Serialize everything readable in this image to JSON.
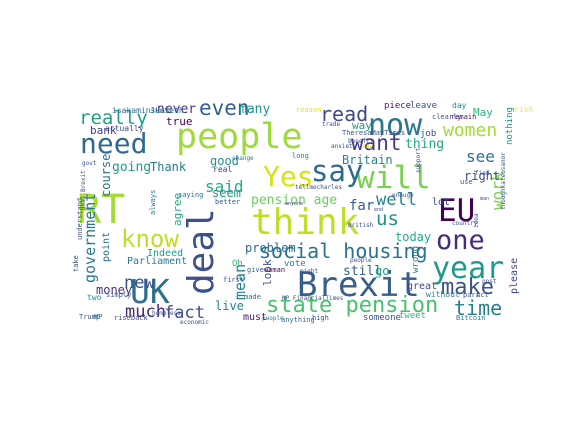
{
  "word_cloud": {
    "colormap": "viridis",
    "background": "#ffffff",
    "words": [
      {
        "text": "RT",
        "color": "#a5db36"
      },
      {
        "text": "people",
        "color": "#9fda3a"
      },
      {
        "text": "think",
        "color": "#bddf26"
      },
      {
        "text": "UK",
        "color": "#2e6f8e"
      },
      {
        "text": "will",
        "color": "#7ad151"
      },
      {
        "text": "deal",
        "color": "#3b528b"
      },
      {
        "text": "Brexit",
        "color": "#355e8d"
      },
      {
        "text": "now",
        "color": "#2a788e"
      },
      {
        "text": "EU",
        "color": "#440154"
      },
      {
        "text": "say",
        "color": "#2f6b8e"
      },
      {
        "text": "need",
        "color": "#31688e"
      },
      {
        "text": "year",
        "color": "#1f9a8a"
      },
      {
        "text": "know",
        "color": "#c2df23"
      },
      {
        "text": "one",
        "color": "#472c7a"
      },
      {
        "text": "Yes",
        "color": "#d8e219"
      },
      {
        "text": "state pension",
        "color": "#48c16e"
      },
      {
        "text": "time",
        "color": "#277f8e"
      },
      {
        "text": "women",
        "color": "#a5db36"
      },
      {
        "text": "want",
        "color": "#443983"
      },
      {
        "text": "social housing",
        "color": "#2c728e"
      },
      {
        "text": "government",
        "color": "#2a788e"
      },
      {
        "text": "read",
        "color": "#3e4989"
      },
      {
        "text": "make",
        "color": "#3b528b"
      },
      {
        "text": "really",
        "color": "#1fa187"
      },
      {
        "text": "even",
        "color": "#34618d"
      },
      {
        "text": "work",
        "color": "#7ad151"
      },
      {
        "text": "much",
        "color": "#482878"
      },
      {
        "text": "fact",
        "color": "#3e4c8a"
      },
      {
        "text": "new",
        "color": "#3b528b"
      },
      {
        "text": "well",
        "color": "#25838e"
      },
      {
        "text": "us",
        "color": "#21918c"
      },
      {
        "text": "see",
        "color": "#2e6e8e"
      },
      {
        "text": "said",
        "color": "#25ac82"
      },
      {
        "text": "mean",
        "color": "#277f8e"
      },
      {
        "text": "Thank",
        "color": "#2a788e"
      },
      {
        "text": "going",
        "color": "#1fa187"
      },
      {
        "text": "pension age",
        "color": "#6ccd5a"
      },
      {
        "text": "today",
        "color": "#25ab82"
      },
      {
        "text": "right",
        "color": "#3e4989"
      },
      {
        "text": "still",
        "color": "#33638d"
      },
      {
        "text": "go",
        "color": "#1f9e89"
      },
      {
        "text": "Parliament",
        "color": "#2a788e"
      },
      {
        "text": "many",
        "color": "#1f948c"
      },
      {
        "text": "never",
        "color": "#46337f"
      },
      {
        "text": "true",
        "color": "#440154"
      },
      {
        "text": "May",
        "color": "#31b57b"
      },
      {
        "text": "thing",
        "color": "#22a884"
      },
      {
        "text": "course",
        "color": "#2c728e"
      },
      {
        "text": "bank",
        "color": "#414487"
      },
      {
        "text": "actually",
        "color": "#3e4989"
      },
      {
        "text": "Britain",
        "color": "#25838e"
      },
      {
        "text": "far",
        "color": "#34618d"
      },
      {
        "text": "live",
        "color": "#26818e"
      },
      {
        "text": "problem",
        "color": "#2d708e"
      },
      {
        "text": "good",
        "color": "#21918c"
      },
      {
        "text": "agree",
        "color": "#22a884"
      },
      {
        "text": "point",
        "color": "#2c728e"
      },
      {
        "text": "money",
        "color": "#46327e"
      },
      {
        "text": "look",
        "color": "#3b528b"
      },
      {
        "text": "seem",
        "color": "#1f988b"
      },
      {
        "text": "Indeed",
        "color": "#1fa187"
      },
      {
        "text": "must",
        "color": "#481f70"
      },
      {
        "text": "please",
        "color": "#3f4788"
      },
      {
        "text": "anything",
        "color": "#31688e"
      },
      {
        "text": "tweet",
        "color": "#35b779"
      },
      {
        "text": "without",
        "color": "#26828e"
      },
      {
        "text": "wrong",
        "color": "#2a788e"
      },
      {
        "text": "lot",
        "color": "#3b528b"
      },
      {
        "text": "vote",
        "color": "#287c8e"
      },
      {
        "text": "made",
        "color": "#2e6e8e"
      },
      {
        "text": "Oh",
        "color": "#35b779"
      },
      {
        "text": "Act",
        "color": "#3b528b"
      },
      {
        "text": "great",
        "color": "#404688"
      },
      {
        "text": "part",
        "color": "#365c8d"
      },
      {
        "text": "way",
        "color": "#1f9e89"
      },
      {
        "text": "piece",
        "color": "#481a6c"
      },
      {
        "text": "leave",
        "color": "#3b528b"
      },
      {
        "text": "day",
        "color": "#21918c"
      },
      {
        "text": "risk",
        "color": "#fde725"
      },
      {
        "text": "isakaminska",
        "color": "#2c728e"
      },
      {
        "text": "JunSeth",
        "color": "#2c728e"
      },
      {
        "text": "reason",
        "color": "#e5e419"
      },
      {
        "text": "trade",
        "color": "#3b528b"
      },
      {
        "text": "job",
        "color": "#3e4989"
      },
      {
        "text": "nothing",
        "color": "#1f988b"
      },
      {
        "text": "clearly",
        "color": "#3b528b"
      },
      {
        "text": "remain",
        "color": "#481467"
      },
      {
        "text": "long",
        "color": "#2a788e"
      },
      {
        "text": "change",
        "color": "#2a788e"
      },
      {
        "text": "real",
        "color": "#404588"
      },
      {
        "text": "give",
        "color": "#34618d"
      },
      {
        "text": "better",
        "color": "#3a548c"
      },
      {
        "text": "woman",
        "color": "#440154"
      },
      {
        "text": "saying",
        "color": "#2e6e8e"
      },
      {
        "text": "first",
        "color": "#3b528b"
      },
      {
        "text": "always",
        "color": "#2a788e"
      },
      {
        "text": "simply",
        "color": "#3b528b"
      },
      {
        "text": "riseback",
        "color": "#3b528b"
      },
      {
        "text": "economic",
        "color": "#3b528b"
      },
      {
        "text": "homeless",
        "color": "#3b528b"
      },
      {
        "text": "people",
        "color": "#2a788e"
      },
      {
        "text": "high",
        "color": "#3b528b"
      },
      {
        "text": "someone",
        "color": "#3b528b"
      },
      {
        "text": "Bitcoin",
        "color": "#2a788e"
      },
      {
        "text": "thoughkateosanor",
        "color": "#3b528b"
      },
      {
        "text": "tellmecharles",
        "color": "#3b528b"
      },
      {
        "text": "benefit",
        "color": "#3b528b"
      },
      {
        "text": "Trump",
        "color": "#3b528b"
      },
      {
        "text": "MP",
        "color": "#2a788e"
      },
      {
        "text": "two",
        "color": "#21918c"
      },
      {
        "text": "take",
        "color": "#3b528b"
      },
      {
        "text": "understand",
        "color": "#3b528b"
      },
      {
        "text": "deal Brexit",
        "color": "#3b528b"
      },
      {
        "text": "govt",
        "color": "#3b528b"
      },
      {
        "text": "post",
        "color": "#3b528b"
      },
      {
        "text": "use",
        "color": "#3b528b"
      },
      {
        "text": "find",
        "color": "#3b528b"
      },
      {
        "text": "idea",
        "color": "#3b528b"
      },
      {
        "text": "country",
        "color": "#3b528b"
      },
      {
        "text": "support",
        "color": "#3b528b"
      },
      {
        "text": "enough",
        "color": "#3b528b"
      },
      {
        "text": "British",
        "color": "#3b528b"
      },
      {
        "text": "might",
        "color": "#3b528b"
      },
      {
        "text": "MP FinancialTimes",
        "color": "#3b528b"
      },
      {
        "text": "anyone",
        "color": "#3b528b"
      },
      {
        "text": "people",
        "color": "#3b528b"
      },
      {
        "text": "say",
        "color": "#e5e419"
      },
      {
        "text": "TheresaMayTimes",
        "color": "#3b528b"
      },
      {
        "text": "anxiety",
        "color": "#3b528b"
      },
      {
        "text": "end",
        "color": "#3b528b"
      },
      {
        "text": "man",
        "color": "#3b528b"
      },
      {
        "text": "ago",
        "color": "#3b528b"
      },
      {
        "text": "Tw",
        "color": "#3b528b"
      }
    ]
  }
}
